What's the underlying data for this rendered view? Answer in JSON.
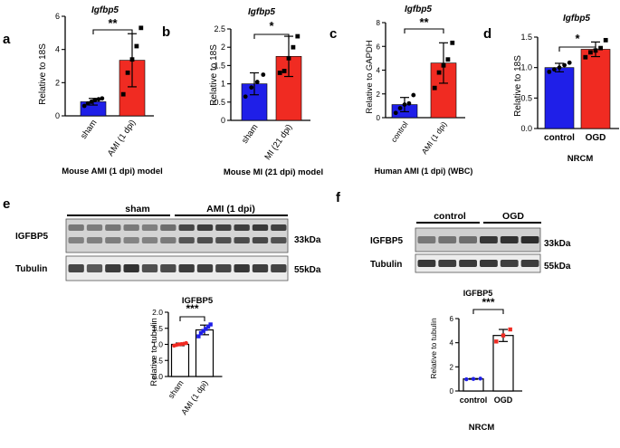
{
  "figure": {
    "panel_a": {
      "letter": "a",
      "gene": "Igfbp5",
      "ylabel": "Relative to 18S",
      "sig": "**",
      "caption": "Mouse AMI (1 dpi) model"
    },
    "panel_b": {
      "letter": "b",
      "gene": "Igfbp5",
      "ylabel": "Relative to 18S",
      "sig": "*",
      "caption": "Mouse MI (21 dpi) model"
    },
    "panel_c": {
      "letter": "c",
      "gene": "Igfbp5",
      "ylabel": "Relative to GAPDH",
      "sig": "**",
      "caption": "Human AMI (1 dpi) (WBC)"
    },
    "panel_d": {
      "letter": "d",
      "gene": "Igfbp5",
      "ylabel": "Relative to 18S",
      "sig": "*",
      "caption": "NRCM"
    },
    "panel_e": {
      "letter": "e",
      "group1": "sham",
      "group2": "AMI (1 dpi)",
      "row1": "IGFBP5",
      "row2": "Tubulin",
      "kda1": "33kDa",
      "kda2": "55kDa",
      "title": "IGFBP5",
      "ylabel": "Relative to tubulin",
      "sig": "***"
    },
    "panel_f": {
      "letter": "f",
      "group1": "control",
      "group2": "OGD",
      "row1": "IGFBP5",
      "row2": "Tubulin",
      "kda1": "33kDa",
      "kda2": "55kDa",
      "title": "IGFBP5",
      "ylabel": "Relative to tubulin",
      "sig": "***",
      "caption": "NRCM"
    }
  },
  "colors": {
    "blue": "#1f1fe8",
    "red": "#f02b22",
    "black": "#000000"
  },
  "chart_data": [
    {
      "id": "a",
      "type": "bar",
      "title": "Igfbp5",
      "ylabel": "Relative to 18S",
      "categories": [
        "sham",
        "AMI (1 dpi)"
      ],
      "ylim": [
        0,
        6
      ],
      "yticks": [
        0,
        2,
        4,
        6
      ],
      "values": [
        0.85,
        3.35
      ],
      "errors": [
        0.2,
        1.6
      ],
      "fills": [
        "#1f1fe8",
        "#f02b22"
      ],
      "points": [
        [
          0.6,
          0.75,
          0.85,
          0.95,
          1.0,
          1.05
        ],
        [
          1.3,
          2.6,
          3.4,
          4.2,
          5.3
        ]
      ]
    },
    {
      "id": "b",
      "type": "bar",
      "title": "Igfbp5",
      "ylabel": "Relative to 18S",
      "categories": [
        "sham",
        "MI (21 dpi)"
      ],
      "ylim": [
        0,
        2.5
      ],
      "yticks": [
        0,
        0.5,
        1,
        1.5,
        2,
        2.5
      ],
      "values": [
        1.0,
        1.75
      ],
      "errors": [
        0.3,
        0.55
      ],
      "fills": [
        "#1f1fe8",
        "#f02b22"
      ],
      "points": [
        [
          0.65,
          0.9,
          1.05,
          1.25
        ],
        [
          1.3,
          1.35,
          1.7,
          2.0,
          2.3
        ]
      ]
    },
    {
      "id": "c",
      "type": "bar",
      "title": "Igfbp5",
      "ylabel": "Relative to GAPDH",
      "categories": [
        "control",
        "AMI (1 dpi)"
      ],
      "ylim": [
        0,
        8
      ],
      "yticks": [
        0,
        2,
        4,
        6,
        8
      ],
      "values": [
        1.1,
        4.6
      ],
      "errors": [
        0.6,
        1.7
      ],
      "fills": [
        "#1f1fe8",
        "#f02b22"
      ],
      "points": [
        [
          0.4,
          0.8,
          1.1,
          1.2,
          1.9
        ],
        [
          2.5,
          3.8,
          4.4,
          4.9,
          6.3
        ]
      ]
    },
    {
      "id": "d",
      "type": "bar",
      "title": "Igfbp5",
      "ylabel": "Relative to 18S",
      "categories": [
        "control",
        "OGD"
      ],
      "ylim": [
        0,
        1.5
      ],
      "yticks": [
        0,
        0.5,
        1.0,
        1.5
      ],
      "values": [
        1.0,
        1.3
      ],
      "errors": [
        0.07,
        0.12
      ],
      "fills": [
        "#1f1fe8",
        "#f02b22"
      ],
      "points": [
        [
          0.93,
          0.97,
          1.0,
          1.04,
          1.08
        ],
        [
          1.17,
          1.25,
          1.28,
          1.32,
          1.45
        ]
      ]
    },
    {
      "id": "e",
      "type": "bar",
      "title": "IGFBP5",
      "ylabel": "Relative to tubulin",
      "categories": [
        "sham",
        "AMI (1 dpi)"
      ],
      "ylim": [
        0,
        2.0
      ],
      "yticks": [
        0,
        0.5,
        1.0,
        1.5,
        2.0
      ],
      "values": [
        1.0,
        1.45
      ],
      "errors": [
        0.04,
        0.15
      ],
      "fills": [
        "#ffffff",
        "#ffffff"
      ],
      "point_colors": [
        "#f02b22",
        "#1f1fe8"
      ],
      "points": [
        [
          0.96,
          0.98,
          1.0,
          1.01,
          1.02,
          1.04
        ],
        [
          1.25,
          1.35,
          1.42,
          1.48,
          1.55,
          1.62
        ]
      ]
    },
    {
      "id": "f",
      "type": "bar",
      "title": "IGFBP5",
      "ylabel": "Relative to tubulin",
      "categories": [
        "control",
        "OGD"
      ],
      "xlabel": "NRCM",
      "ylim": [
        0,
        6
      ],
      "yticks": [
        0,
        2,
        4,
        6
      ],
      "values": [
        1.0,
        4.6
      ],
      "errors": [
        0.03,
        0.5
      ],
      "fills": [
        "#ffffff",
        "#ffffff"
      ],
      "point_colors": [
        "#1f1fe8",
        "#f02b22"
      ],
      "points": [
        [
          0.97,
          1.0,
          1.03
        ],
        [
          4.1,
          4.6,
          5.1
        ]
      ]
    }
  ]
}
